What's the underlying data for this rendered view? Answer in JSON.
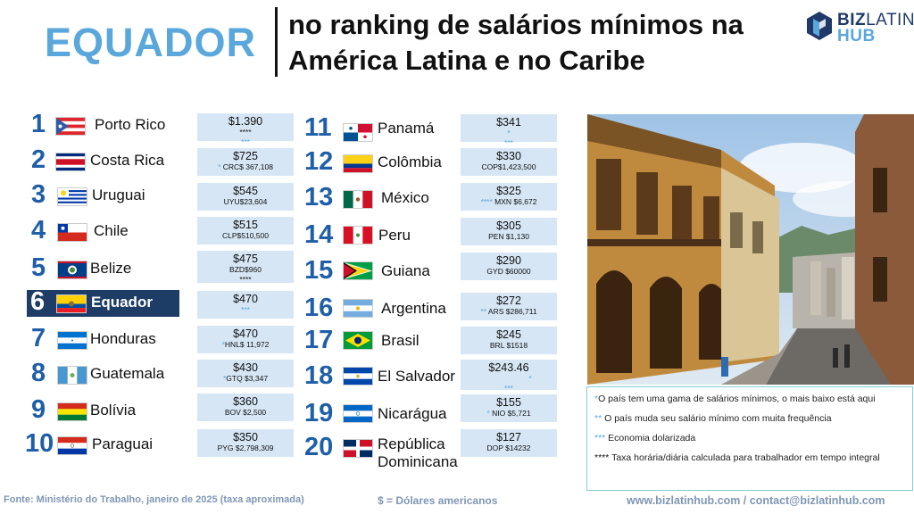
{
  "header": {
    "country": "EQUADOR",
    "title_line1": "no ranking de salários mínimos na",
    "title_line2": "América Latina e no Caribe"
  },
  "logo": {
    "biz": "BIZ",
    "latin": "LATIN",
    "hub": "HUB"
  },
  "ranking_left": [
    {
      "rank": "1",
      "country": "Porto Rico",
      "usd": "$1.390",
      "local": "",
      "stars": "**** / ***"
    },
    {
      "rank": "2",
      "country": "Costa Rica",
      "usd": "$725",
      "local": "CRC$ 367,108",
      "stars": "*"
    },
    {
      "rank": "3",
      "country": "Uruguai",
      "usd": "$545",
      "local": "UYU$23,604",
      "stars": ""
    },
    {
      "rank": "4",
      "country": "Chile",
      "usd": "$515",
      "local": "CLP$510,500",
      "stars": ""
    },
    {
      "rank": "5",
      "country": "Belize",
      "usd": "$475",
      "local": "BZD$960",
      "stars": "****"
    },
    {
      "rank": "6",
      "country": "Equador",
      "usd": "$470",
      "local": "",
      "stars": "***"
    },
    {
      "rank": "7",
      "country": "Honduras",
      "usd": "$470",
      "local": "HNL$ 11,972",
      "stars": "*"
    },
    {
      "rank": "8",
      "country": "Guatemala",
      "usd": "$430",
      "local": "GTQ $3,347",
      "stars": "*"
    },
    {
      "rank": "9",
      "country": "Bolívia",
      "usd": "$360",
      "local": "BOV $2,500",
      "stars": ""
    },
    {
      "rank": "10",
      "country": "Paraguai",
      "usd": "$350",
      "local": "PYG $2,798,309",
      "stars": ""
    }
  ],
  "ranking_right": [
    {
      "rank": "11",
      "country": "Panamá",
      "usd": "$341",
      "local": "",
      "stars": "* / ***"
    },
    {
      "rank": "12",
      "country": "Colômbia",
      "usd": "$330",
      "local": "COP$1,423,500",
      "stars": ""
    },
    {
      "rank": "13",
      "country": "México",
      "usd": "$325",
      "local": "MXN $6,672",
      "stars": "****"
    },
    {
      "rank": "14",
      "country": "Peru",
      "usd": "$305",
      "local": "PEN $1,130",
      "stars": ""
    },
    {
      "rank": "15",
      "country": "Guiana",
      "usd": "$290",
      "local": "GYD $60000",
      "stars": ""
    },
    {
      "rank": "16",
      "country": "Argentina",
      "usd": "$272",
      "local": "ARS $286,711",
      "stars": "**"
    },
    {
      "rank": "17",
      "country": "Brasil",
      "usd": "$245",
      "local": "BRL $1518",
      "stars": ""
    },
    {
      "rank": "18",
      "country": "El Salvador",
      "usd": "$243.46",
      "local": "",
      "stars": "* / ***"
    },
    {
      "rank": "19",
      "country": "Nicarágua",
      "usd": "$155",
      "local": "NIO $5,721",
      "stars": "*"
    },
    {
      "rank": "20",
      "country": "República Dominicana",
      "country_l1": "República",
      "country_l2": "Dominicana",
      "usd": "$127",
      "local": "DOP $14232",
      "stars": ""
    }
  ],
  "notes": {
    "n1_star": "*",
    "n1_text": "O país tem uma gama de salários mínimos, o mais baixo está aqui",
    "n2_star": "**",
    "n2_text": " O país muda seu salário mínimo com muita frequência",
    "n3_star": "***",
    "n3_text": " Economia dolarizada",
    "n4_star": "****",
    "n4_text": " Taxa horária/diária calculada para trabalhador em tempo integral"
  },
  "footer": {
    "source": "Fonte: Ministério do Trabalho, janeiro de 2025 (taxa aproximada)",
    "currency": "$ = Dólares americanos",
    "contact": "www.bizlatinhub.com / contact@bizlatinhub.com"
  },
  "colors": {
    "accent": "#5aa7dc",
    "rank": "#1f5fa8",
    "highlight": "#1d3d66",
    "box": "#d6e6f5"
  }
}
